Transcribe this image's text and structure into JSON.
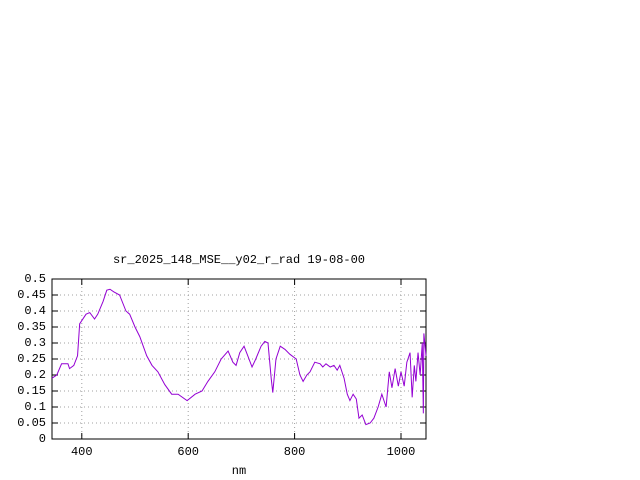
{
  "chart_data": {
    "type": "line",
    "title": "sr_2025_148_MSE__y02_r_rad 19-08-00",
    "x_label": "nm",
    "x": [
      344,
      353,
      362,
      374,
      377,
      385,
      392,
      396,
      408,
      415,
      424,
      430,
      440,
      447,
      453,
      460,
      471,
      483,
      490,
      500,
      509,
      522,
      532,
      543,
      556,
      569,
      581,
      598,
      613,
      626,
      637,
      650,
      662,
      675,
      684,
      690,
      697,
      705,
      712,
      720,
      727,
      737,
      744,
      750,
      756,
      759,
      765,
      773,
      782,
      791,
      803,
      810,
      816,
      823,
      829,
      838,
      848,
      853,
      859,
      867,
      874,
      880,
      885,
      893,
      899,
      904,
      910,
      916,
      921,
      927,
      934,
      942,
      949,
      957,
      964,
      972,
      978,
      983,
      989,
      995,
      1000,
      1006,
      1011,
      1017,
      1021,
      1025,
      1028,
      1032,
      1036,
      1040,
      1042,
      1043,
      1047
    ],
    "series": [
      {
        "color": "#9400d3",
        "values": [
          0.19,
          0.2,
          0.235,
          0.235,
          0.22,
          0.23,
          0.26,
          0.36,
          0.39,
          0.395,
          0.375,
          0.39,
          0.43,
          0.465,
          0.468,
          0.46,
          0.45,
          0.4,
          0.39,
          0.35,
          0.32,
          0.26,
          0.23,
          0.21,
          0.17,
          0.14,
          0.14,
          0.12,
          0.14,
          0.15,
          0.18,
          0.21,
          0.25,
          0.275,
          0.24,
          0.23,
          0.27,
          0.29,
          0.26,
          0.225,
          0.25,
          0.29,
          0.305,
          0.3,
          0.19,
          0.145,
          0.25,
          0.29,
          0.28,
          0.265,
          0.25,
          0.2,
          0.18,
          0.2,
          0.21,
          0.24,
          0.235,
          0.225,
          0.235,
          0.225,
          0.23,
          0.215,
          0.23,
          0.19,
          0.14,
          0.12,
          0.14,
          0.125,
          0.065,
          0.075,
          0.045,
          0.05,
          0.065,
          0.1,
          0.14,
          0.1,
          0.21,
          0.16,
          0.22,
          0.165,
          0.21,
          0.165,
          0.24,
          0.27,
          0.13,
          0.23,
          0.18,
          0.27,
          0.2,
          0.3,
          0.08,
          0.33,
          0.26
        ]
      }
    ],
    "xlim": [
      344,
      1047
    ],
    "ylim": [
      0,
      0.5
    ],
    "xticks": [
      400,
      600,
      800,
      1000
    ],
    "yticks": [
      0,
      0.05,
      0.1,
      0.15,
      0.2,
      0.25,
      0.3,
      0.35,
      0.4,
      0.45,
      0.5
    ],
    "grid": true
  }
}
